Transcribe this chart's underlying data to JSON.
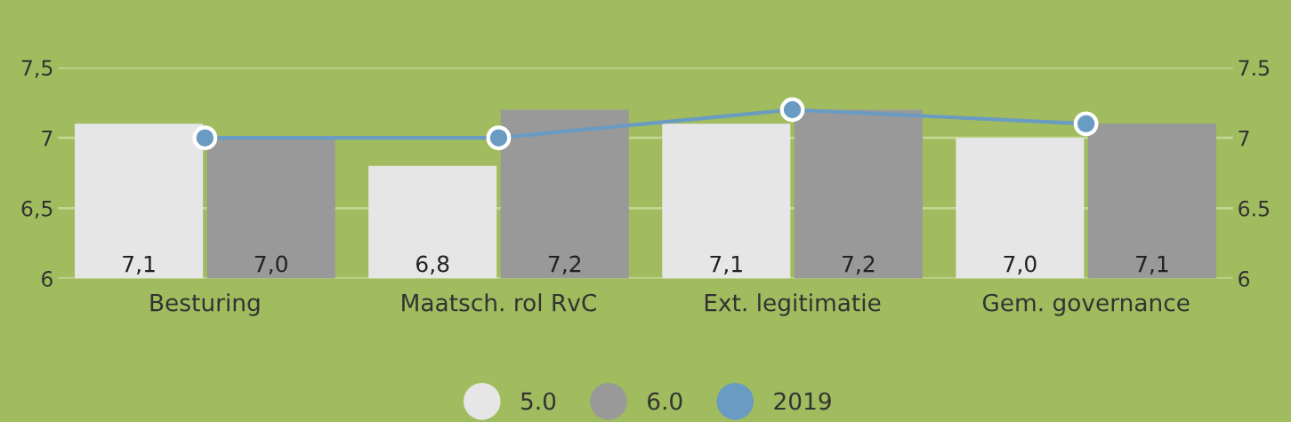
{
  "chart_data": {
    "type": "bar",
    "categories": [
      "Besturing",
      "Maatsch. rol RvC",
      "Ext. legitimatie",
      "Gem. governance"
    ],
    "series": [
      {
        "name": "5.0",
        "color": "#e6e6e6",
        "values": [
          7.1,
          6.8,
          7.1,
          7.0
        ],
        "value_labels": [
          "7,1",
          "6,8",
          "7,1",
          "7,0"
        ]
      },
      {
        "name": "6.0",
        "color": "#999999",
        "values": [
          7.0,
          7.2,
          7.2,
          7.1
        ],
        "value_labels": [
          "7,0",
          "7,2",
          "7,2",
          "7,1"
        ]
      },
      {
        "name": "2019",
        "type": "line",
        "color": "#6a9bc3",
        "marker": "circle",
        "values": [
          7.0,
          7.0,
          7.2,
          7.1
        ]
      }
    ],
    "ylim": [
      6,
      7.5
    ],
    "yticks": [
      {
        "value": 6,
        "label": "6"
      },
      {
        "value": 6.5,
        "label": "6,5"
      },
      {
        "value": 7,
        "label": "7"
      },
      {
        "value": 7.5,
        "label": "7,5"
      }
    ],
    "y2lim": [
      6,
      7.5
    ],
    "y2ticks": [
      6,
      6.5,
      7,
      7.5
    ],
    "grid": "y",
    "legend": "bottom"
  }
}
